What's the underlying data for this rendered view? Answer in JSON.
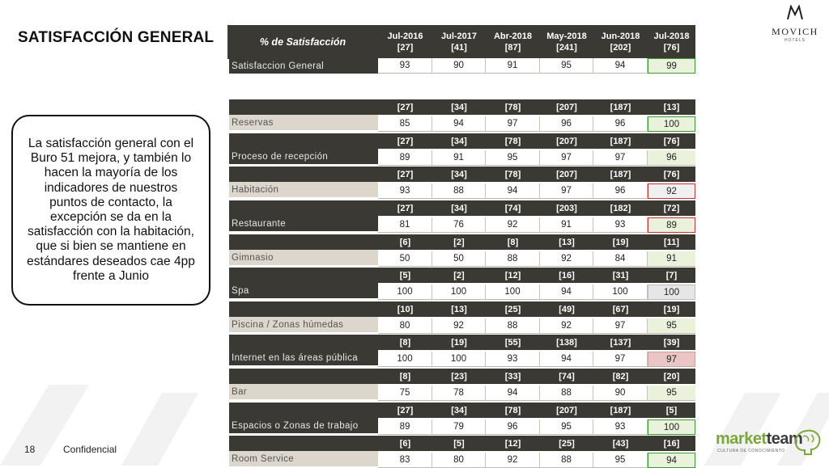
{
  "page": {
    "title": "SATISFACCIÓN GENERAL",
    "callout": "La satisfacción general con el Buro 51 mejora, y también lo hacen la mayoría de los indicadores de nuestros puntos de contacto, la excepción se da en la satisfacción con la habitación, que si bien se mantiene en estándares deseados cae 4pp frente a Junio",
    "page_number": "18",
    "footer": "Confidencial",
    "logo_top": "MOVICH",
    "logo_top_sub": "HOTELS",
    "logo_bottom_1": "market",
    "logo_bottom_2": "team",
    "logo_bottom_sub": "CULTURA DE CONOCIMIENTO"
  },
  "table": {
    "header_label": "% de Satisfacción",
    "columns": [
      {
        "period": "Jul-2016",
        "n": "[27]"
      },
      {
        "period": "Jul-2017",
        "n": "[41]"
      },
      {
        "period": "Abr-2018",
        "n": "[87]"
      },
      {
        "period": "May-2018",
        "n": "[241]"
      },
      {
        "period": "Jun-2018",
        "n": "[202]"
      },
      {
        "period": "Jul-2018",
        "n": "[76]"
      }
    ],
    "rows": [
      {
        "label": "Satisfaccion General",
        "counts": [],
        "values": [
          "93",
          "90",
          "91",
          "95",
          "94",
          "99"
        ],
        "highlight": "green"
      },
      {
        "label": "Reservas",
        "counts": [
          "[27]",
          "[34]",
          "[78]",
          "[207]",
          "[187]",
          "[13]"
        ],
        "values": [
          "85",
          "94",
          "97",
          "96",
          "96",
          "100"
        ],
        "highlight": "green"
      },
      {
        "label": "Proceso de recepción",
        "counts": [
          "[27]",
          "[34]",
          "[78]",
          "[207]",
          "[187]",
          "[76]"
        ],
        "values": [
          "89",
          "91",
          "95",
          "97",
          "97",
          "96"
        ],
        "highlight": "none"
      },
      {
        "label": "Habitación",
        "counts": [
          "[27]",
          "[34]",
          "[78]",
          "[207]",
          "[187]",
          "[76]"
        ],
        "values": [
          "93",
          "88",
          "94",
          "97",
          "96",
          "92"
        ],
        "highlight": "red"
      },
      {
        "label": "Restaurante",
        "counts": [
          "[27]",
          "[34]",
          "[74]",
          "[203]",
          "[182]",
          "[72]"
        ],
        "values": [
          "81",
          "76",
          "92",
          "91",
          "93",
          "89"
        ],
        "highlight": "red-green"
      },
      {
        "label": "Gimnasio",
        "counts": [
          "[6]",
          "[2]",
          "[8]",
          "[13]",
          "[19]",
          "[11]"
        ],
        "values": [
          "50",
          "50",
          "88",
          "92",
          "84",
          "91"
        ],
        "highlight": "none"
      },
      {
        "label": "Spa",
        "counts": [
          "[5]",
          "[2]",
          "[12]",
          "[16]",
          "[31]",
          "[7]"
        ],
        "values": [
          "100",
          "100",
          "100",
          "94",
          "100",
          "100"
        ],
        "highlight": "grey"
      },
      {
        "label": "Piscina / Zonas húmedas",
        "counts": [
          "[10]",
          "[13]",
          "[25]",
          "[49]",
          "[67]",
          "[19]"
        ],
        "values": [
          "80",
          "92",
          "88",
          "92",
          "97",
          "95"
        ],
        "highlight": "none"
      },
      {
        "label": "Internet en las áreas pública",
        "counts": [
          "[8]",
          "[19]",
          "[55]",
          "[138]",
          "[137]",
          "[39]"
        ],
        "values": [
          "100",
          "100",
          "93",
          "94",
          "97",
          "97"
        ],
        "highlight": "pink"
      },
      {
        "label": "Bar",
        "counts": [
          "[8]",
          "[23]",
          "[33]",
          "[74]",
          "[82]",
          "[20]"
        ],
        "values": [
          "75",
          "78",
          "94",
          "88",
          "90",
          "95"
        ],
        "highlight": "none"
      },
      {
        "label": "Espacios o Zonas de trabajo",
        "counts": [
          "[27]",
          "[34]",
          "[78]",
          "[207]",
          "[187]",
          "[5]"
        ],
        "values": [
          "89",
          "79",
          "96",
          "95",
          "93",
          "100"
        ],
        "highlight": "green"
      },
      {
        "label": "Room Service",
        "counts": [
          "[6]",
          "[5]",
          "[12]",
          "[25]",
          "[43]",
          "[16]"
        ],
        "values": [
          "83",
          "80",
          "92",
          "88",
          "95",
          "94"
        ],
        "highlight": "green"
      }
    ]
  }
}
